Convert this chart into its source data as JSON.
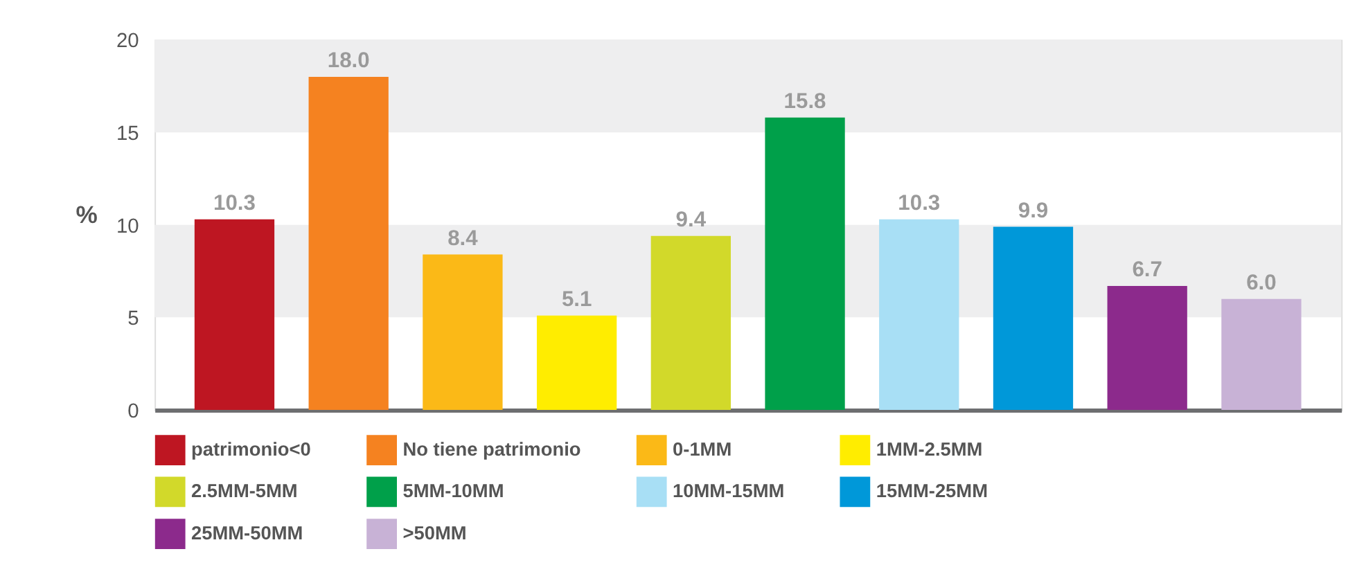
{
  "chart_data": {
    "type": "bar",
    "ylabel": "%",
    "categories": [
      null
    ],
    "series": [
      {
        "name": "patrimonio<0",
        "color": "#be1622",
        "values": [
          10.3
        ],
        "value_labels": [
          "10.3"
        ]
      },
      {
        "name": "No tiene patrimonio",
        "color": "#f58220",
        "values": [
          18.0
        ],
        "value_labels": [
          "18.0"
        ]
      },
      {
        "name": "0-1MM",
        "color": "#fbb917",
        "values": [
          8.4
        ],
        "value_labels": [
          "8.4"
        ]
      },
      {
        "name": "1MM-2.5MM",
        "color": "#ffed00",
        "values": [
          5.1
        ],
        "value_labels": [
          "5.1"
        ]
      },
      {
        "name": "2.5MM-5MM",
        "color": "#d2d92a",
        "values": [
          9.4
        ],
        "value_labels": [
          "9.4"
        ]
      },
      {
        "name": "5MM-10MM",
        "color": "#00a04a",
        "values": [
          15.8
        ],
        "value_labels": [
          "15.8"
        ]
      },
      {
        "name": "10MM-15MM",
        "color": "#a8dff5",
        "values": [
          10.3
        ],
        "value_labels": [
          "10.3"
        ]
      },
      {
        "name": "15MM-25MM",
        "color": "#0098d9",
        "values": [
          9.9
        ],
        "value_labels": [
          "9.9"
        ]
      },
      {
        "name": "25MM-50MM",
        "color": "#8c2a8c",
        "values": [
          6.7
        ],
        "value_labels": [
          "6.7"
        ]
      },
      {
        "name": ">50MM",
        "color": "#c8b2d6",
        "values": [
          6.0
        ],
        "value_labels": [
          "6.0"
        ]
      }
    ],
    "ylim": [
      0,
      20
    ],
    "yticks": [
      0,
      5,
      10,
      15,
      20
    ],
    "bands": [
      {
        "axis": "y",
        "from": 5,
        "to": 10,
        "color": "#eeeeef"
      },
      {
        "axis": "y",
        "from": 15,
        "to": 20,
        "color": "#eeeeef"
      }
    ],
    "tick_labels": "y",
    "legend": "bottom",
    "grid": false
  }
}
